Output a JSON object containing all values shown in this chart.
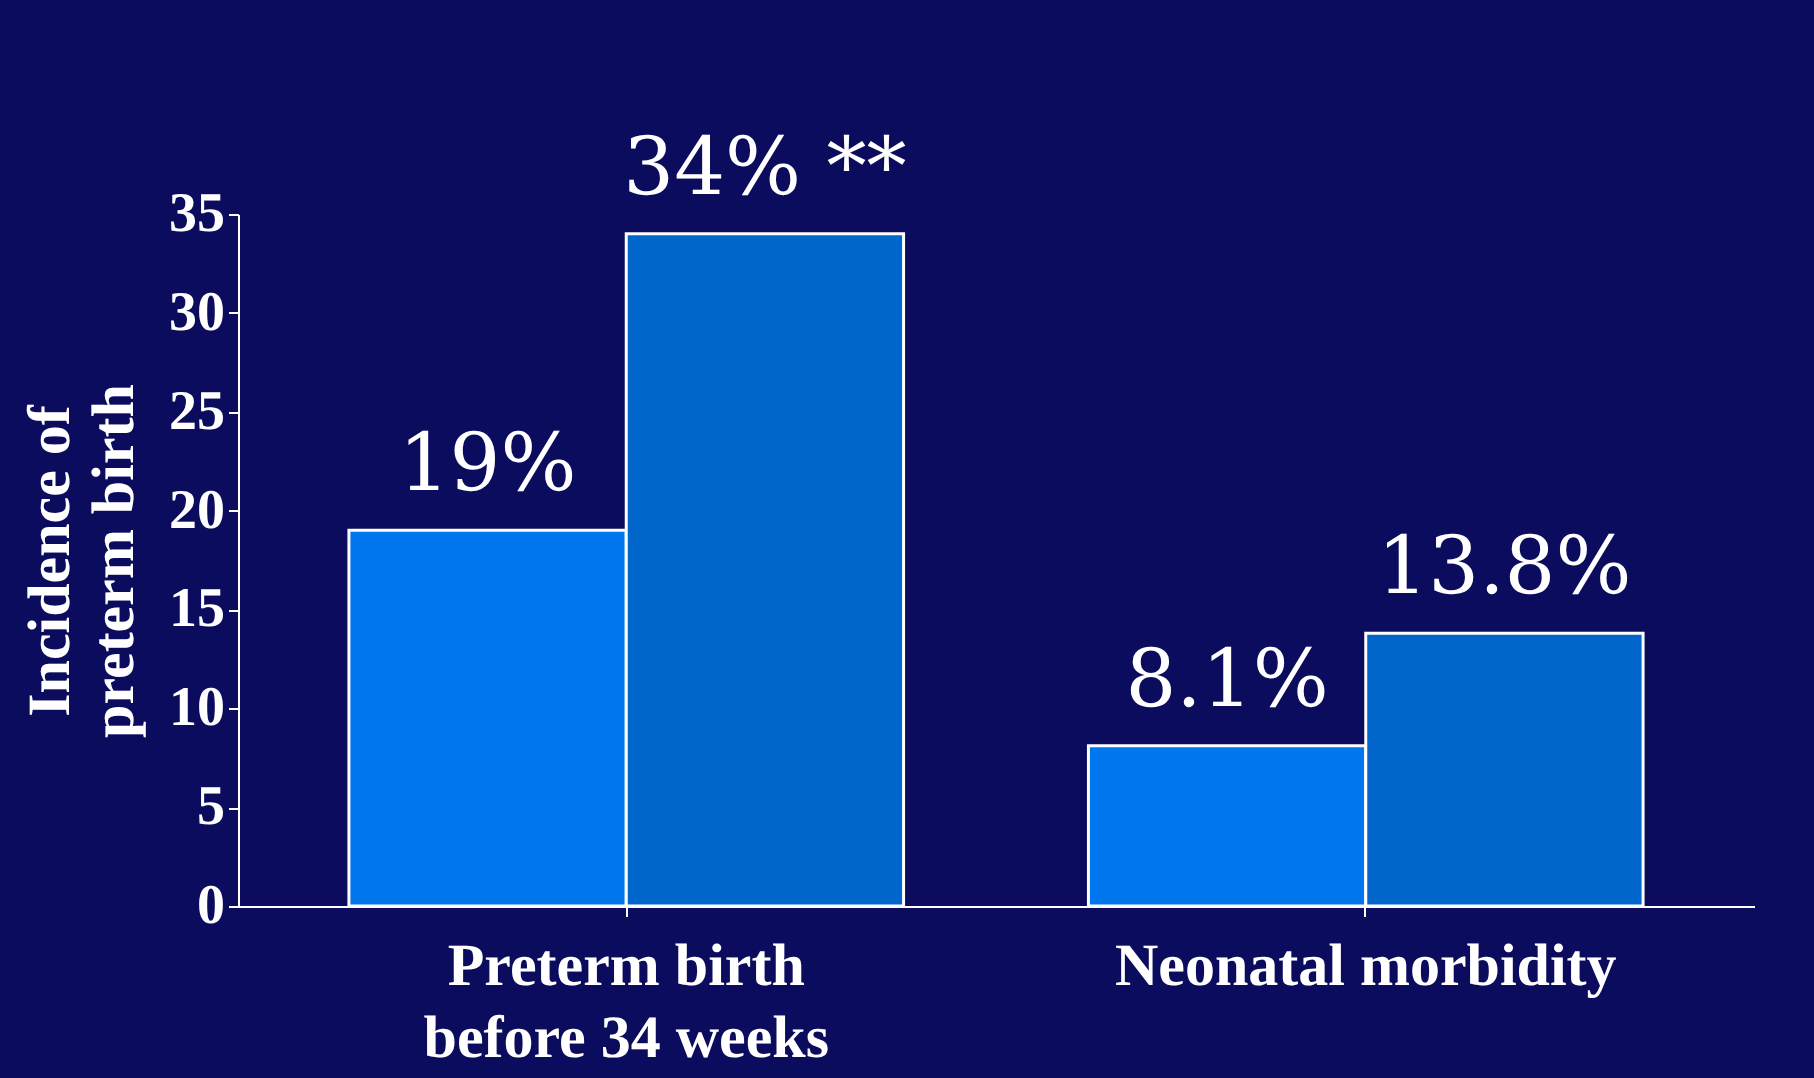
{
  "chart_data": {
    "type": "bar",
    "ylabel": "Incidence of\npreterm birth",
    "categories": [
      "Preterm birth\nbefore 34 weeks",
      "Neonatal morbidity"
    ],
    "series": [
      {
        "color": "#0077ee",
        "values": [
          19,
          8.1
        ],
        "value_labels": [
          "19%",
          "8.1%"
        ]
      },
      {
        "color": "#0066cc",
        "values": [
          34,
          13.8
        ],
        "value_labels": [
          "34% **",
          "13.8%"
        ]
      }
    ],
    "ylim": [
      0,
      35
    ],
    "yticks": [
      0,
      5,
      10,
      15,
      20,
      25,
      30,
      35
    ],
    "grid": false
  }
}
